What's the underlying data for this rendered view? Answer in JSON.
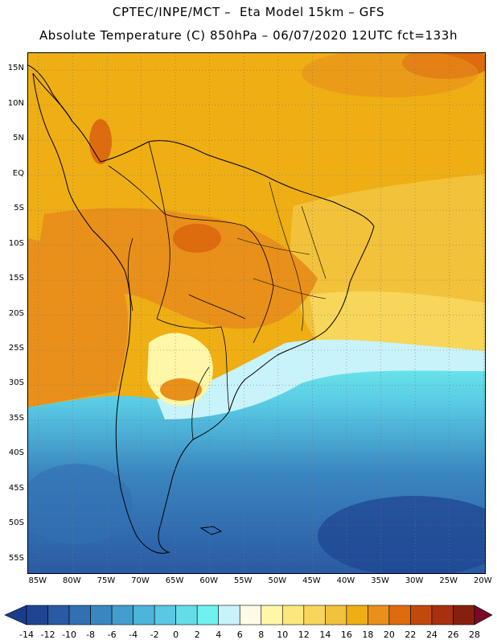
{
  "header": {
    "line1": "CPTEC/INPE/MCT –  Eta Model 15km – GFS",
    "line2": "Absolute Temperature (C) 850hPa – 06/07/2020 12UTC fct=133h"
  },
  "map": {
    "lat_labels": [
      "15N",
      "10N",
      "5N",
      "EQ",
      "5S",
      "10S",
      "15S",
      "20S",
      "25S",
      "30S",
      "35S",
      "40S",
      "45S",
      "50S",
      "55S"
    ],
    "lon_labels": [
      "85W",
      "80W",
      "75W",
      "70W",
      "65W",
      "60W",
      "55W",
      "50W",
      "45W",
      "40W",
      "35W",
      "30W",
      "25W",
      "20W"
    ],
    "grid": "dotted"
  },
  "colorbar": {
    "levels": [
      "-14",
      "-12",
      "-10",
      "-8",
      "-6",
      "-4",
      "-2",
      "0",
      "2",
      "4",
      "6",
      "8",
      "10",
      "12",
      "14",
      "16",
      "18",
      "20",
      "22",
      "24",
      "26",
      "28"
    ],
    "colors": {
      "below": "#1a3c8c",
      "bins": [
        "#1f4592",
        "#2a5aa3",
        "#3270b2",
        "#3a86c0",
        "#439dcd",
        "#4db4da",
        "#58c8e3",
        "#64dde9",
        "#70f0f0",
        "#c8f3fb",
        "#fffbe6",
        "#fff6a8",
        "#fbe77e",
        "#f7d65a",
        "#f2c23a",
        "#eeae14",
        "#e8901a",
        "#de6b0e",
        "#c4480c",
        "#a8300e",
        "#86200e"
      ],
      "above": "#7a0a28"
    }
  }
}
